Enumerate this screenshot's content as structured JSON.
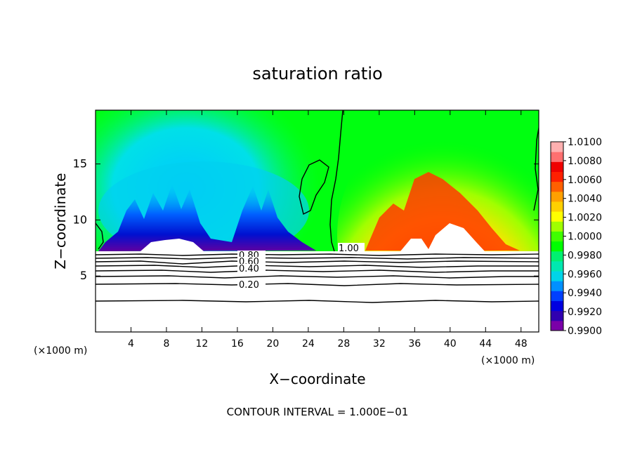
{
  "chart_data": {
    "type": "heatmap",
    "title": "saturation ratio",
    "xlabel": "X−coordinate",
    "ylabel": "Z−coordinate",
    "x_unit": "(×1000 m)",
    "x_unit_right": "(×1000 m)",
    "xlim": [
      0,
      50
    ],
    "ylim": [
      0,
      19.8
    ],
    "x_ticks": [
      "4",
      "8",
      "12",
      "16",
      "20",
      "24",
      "28",
      "32",
      "36",
      "40",
      "44",
      "48"
    ],
    "x_tick_values": [
      4,
      8,
      12,
      16,
      20,
      24,
      28,
      32,
      36,
      40,
      44,
      48
    ],
    "y_ticks": [
      "5",
      "10",
      "15"
    ],
    "y_tick_values": [
      5,
      10,
      15
    ],
    "colorbar": {
      "labels": [
        "1.0100",
        "1.0080",
        "1.0060",
        "1.0040",
        "1.0020",
        "1.0000",
        "0.9980",
        "0.9960",
        "0.9940",
        "0.9920",
        "0.9900"
      ],
      "range": [
        0.99,
        1.01
      ],
      "colors": [
        "#7a00a8",
        "#3000b0",
        "#0000e0",
        "#0040ff",
        "#0090ff",
        "#00d4e8",
        "#00e8b0",
        "#00f070",
        "#00ff00",
        "#40ff00",
        "#a0ff00",
        "#ffff00",
        "#ffd000",
        "#ffa000",
        "#ff6000",
        "#ff2000",
        "#f00000",
        "#ff7070",
        "#ffb0b0"
      ]
    },
    "contour_labels": [
      "1.00",
      "0.80",
      "0.60",
      "0.40",
      "0.20"
    ],
    "footer": "CONTOUR INTERVAL = 1.000E−01",
    "grid": false,
    "legend": "colorbar-right"
  }
}
